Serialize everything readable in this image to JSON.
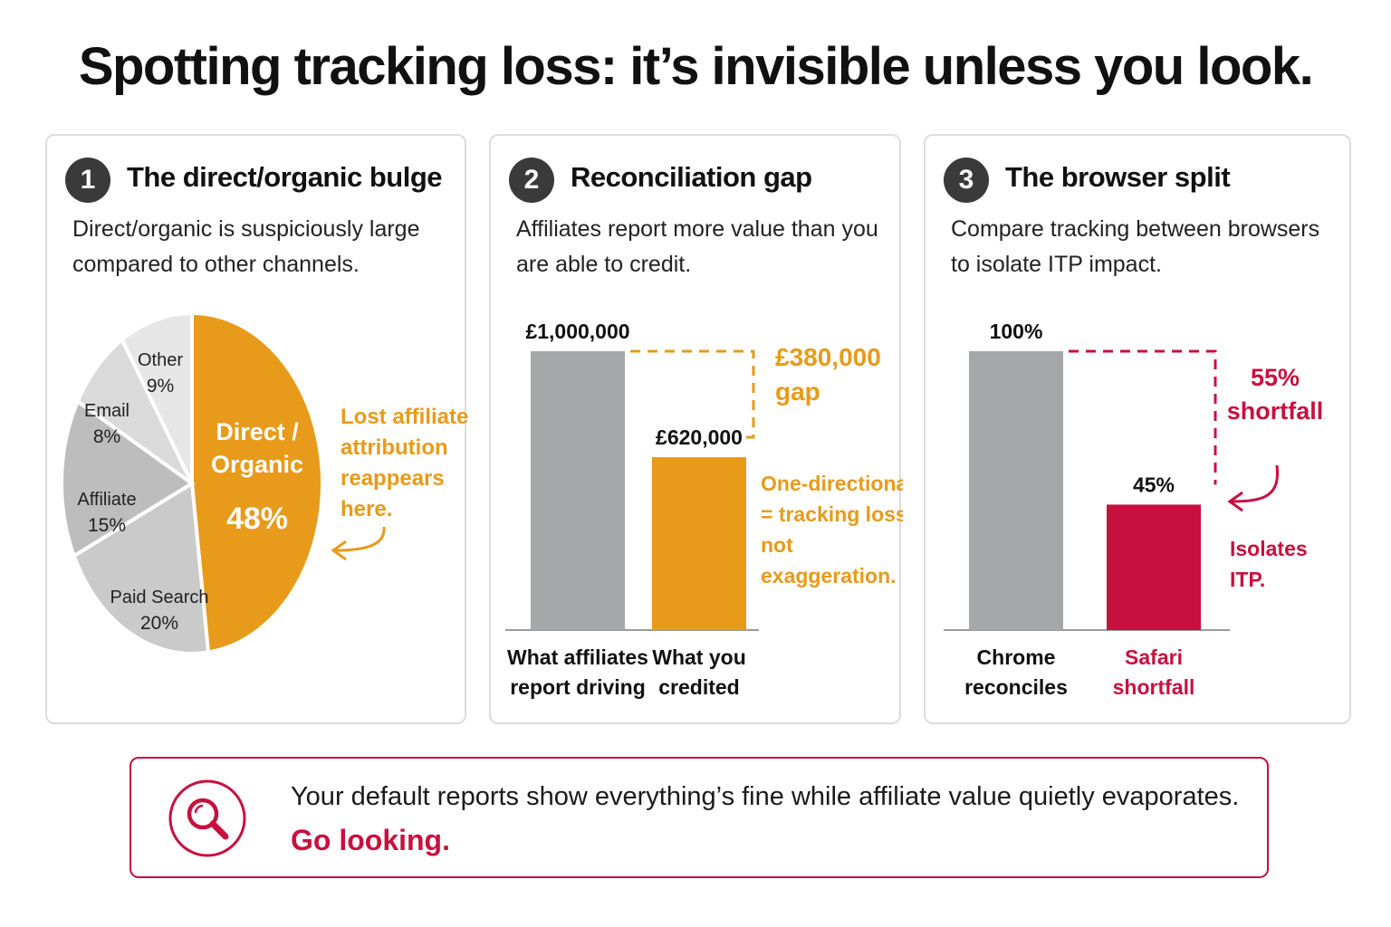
{
  "headline": "Spotting tracking loss: it’s invisible unless you look.",
  "colors": {
    "orange": "#e89a1a",
    "crimson": "#c8103e",
    "grey": "#a6a7a9",
    "dark": "#3a3a3a"
  },
  "panels": [
    {
      "number": "1",
      "title": "The direct/organic bulge",
      "description": "Direct/organic is suspiciously large compared to other channels.",
      "annotation": [
        "Lost affiliate",
        "attribution",
        "reappears",
        "here."
      ]
    },
    {
      "number": "2",
      "title": "Reconciliation gap",
      "description": "Affiliates report more value than you are able to credit.",
      "gap_label": [
        "£380,000",
        "gap"
      ],
      "annotation": [
        "One-directional",
        "= tracking loss,",
        "not",
        "exaggeration."
      ]
    },
    {
      "number": "3",
      "title": "The browser split",
      "description": "Compare tracking between browsers to isolate ITP impact.",
      "gap_label": [
        "55%",
        "shortfall"
      ],
      "annotation": [
        "Isolates",
        "ITP."
      ]
    }
  ],
  "chart_data": [
    {
      "type": "pie",
      "slices": [
        {
          "label": [
            "Direct /",
            "Organic"
          ],
          "value": 48,
          "value_label": "48%",
          "color": "#e89a1a"
        },
        {
          "label": [
            "Paid Search"
          ],
          "value": 20,
          "value_label": "20%",
          "color": "#cacaca"
        },
        {
          "label": [
            "Affiliate"
          ],
          "value": 15,
          "value_label": "15%",
          "color": "#bdbdbd"
        },
        {
          "label": [
            "Email"
          ],
          "value": 8,
          "value_label": "8%",
          "color": "#dadada"
        },
        {
          "label": [
            "Other"
          ],
          "value": 9,
          "value_label": "9%",
          "color": "#e6e6e6"
        }
      ]
    },
    {
      "type": "bar",
      "categories": [
        [
          "What affiliates",
          "report driving"
        ],
        [
          "What you",
          "credited"
        ]
      ],
      "values": [
        1000000,
        620000
      ],
      "value_labels": [
        "£1,000,000",
        "£620,000"
      ],
      "colors": [
        "#a6a7a9",
        "#e89a1a"
      ],
      "ylim": [
        0,
        1000000
      ]
    },
    {
      "type": "bar",
      "categories": [
        [
          "Chrome",
          "reconciles"
        ],
        [
          "Safari",
          "shortfall"
        ]
      ],
      "values": [
        100,
        45
      ],
      "value_labels": [
        "100%",
        "45%"
      ],
      "colors": [
        "#a6a7a9",
        "#c8103e"
      ],
      "ylim": [
        0,
        100
      ]
    }
  ],
  "footer": {
    "text": "Your default reports show everything’s fine while affiliate value quietly evaporates.",
    "cta": "Go looking."
  }
}
